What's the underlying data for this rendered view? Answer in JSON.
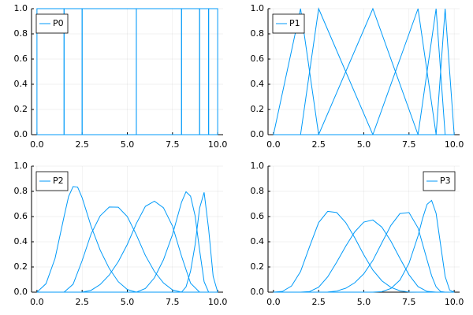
{
  "chart_data": [
    {
      "type": "line",
      "legend_label": "P0",
      "legend_position": "top-left",
      "color": "#009af9",
      "grid": true,
      "xlim": [
        -0.3,
        10.3
      ],
      "ylim": [
        0,
        1
      ],
      "xticks": [
        {
          "value": 0,
          "label": "0.0"
        },
        {
          "value": 2.5,
          "label": "2.5"
        },
        {
          "value": 5,
          "label": "5.0"
        },
        {
          "value": 7.5,
          "label": "7.5"
        },
        {
          "value": 10,
          "label": "10.0"
        }
      ],
      "yticks": [
        {
          "value": 0,
          "label": "0.0"
        },
        {
          "value": 0.2,
          "label": "0.2"
        },
        {
          "value": 0.4,
          "label": "0.4"
        },
        {
          "value": 0.6,
          "label": "0.6"
        },
        {
          "value": 0.8,
          "label": "0.8"
        },
        {
          "value": 1,
          "label": "1.0"
        }
      ],
      "series": [
        {
          "x": [
            0,
            0,
            0,
            1.5,
            1.5,
            10
          ],
          "values": [
            0,
            0,
            1,
            1,
            0,
            0
          ]
        },
        {
          "x": [
            0,
            1.5,
            1.5,
            2.5,
            2.5,
            10
          ],
          "values": [
            0,
            0,
            1,
            1,
            0,
            0
          ]
        },
        {
          "x": [
            0,
            2.5,
            2.5,
            5.5,
            5.5,
            10
          ],
          "values": [
            0,
            0,
            1,
            1,
            0,
            0
          ]
        },
        {
          "x": [
            0,
            5.5,
            5.5,
            8,
            8,
            10
          ],
          "values": [
            0,
            0,
            1,
            1,
            0,
            0
          ]
        },
        {
          "x": [
            0,
            8,
            8,
            9,
            9,
            10
          ],
          "values": [
            0,
            0,
            1,
            1,
            0,
            0
          ]
        },
        {
          "x": [
            0,
            9,
            9,
            9.5,
            9.5,
            10
          ],
          "values": [
            0,
            0,
            1,
            1,
            0,
            0
          ]
        },
        {
          "x": [
            0,
            9.5,
            9.5,
            10,
            10,
            10
          ],
          "values": [
            0,
            0,
            1,
            1,
            0,
            0
          ]
        }
      ]
    },
    {
      "type": "line",
      "legend_label": "P1",
      "legend_position": "top-left",
      "color": "#009af9",
      "grid": true,
      "xlim": [
        -0.3,
        10.3
      ],
      "ylim": [
        0,
        1
      ],
      "xticks": [
        {
          "value": 0,
          "label": "0.0"
        },
        {
          "value": 2.5,
          "label": "2.5"
        },
        {
          "value": 5,
          "label": "5.0"
        },
        {
          "value": 7.5,
          "label": "7.5"
        },
        {
          "value": 10,
          "label": "10.0"
        }
      ],
      "yticks": [
        {
          "value": 0,
          "label": "0.0"
        },
        {
          "value": 0.2,
          "label": "0.2"
        },
        {
          "value": 0.4,
          "label": "0.4"
        },
        {
          "value": 0.6,
          "label": "0.6"
        },
        {
          "value": 0.8,
          "label": "0.8"
        },
        {
          "value": 1,
          "label": "1.0"
        }
      ],
      "series": [
        {
          "x": [
            0,
            0,
            1.5,
            2.5,
            10
          ],
          "values": [
            0,
            0,
            1,
            0,
            0
          ]
        },
        {
          "x": [
            0,
            1.5,
            2.5,
            5.5,
            10
          ],
          "values": [
            0,
            0,
            1,
            0,
            0
          ]
        },
        {
          "x": [
            0,
            2.5,
            5.5,
            8,
            10
          ],
          "values": [
            0,
            0,
            1,
            0,
            0
          ]
        },
        {
          "x": [
            0,
            5.5,
            8,
            9,
            10
          ],
          "values": [
            0,
            0,
            1,
            0,
            0
          ]
        },
        {
          "x": [
            0,
            8,
            9,
            9.5,
            10
          ],
          "values": [
            0,
            0,
            1,
            0,
            0
          ]
        },
        {
          "x": [
            0,
            9,
            9.5,
            10,
            10
          ],
          "values": [
            0,
            0,
            1,
            0,
            0
          ]
        }
      ]
    },
    {
      "type": "line",
      "legend_label": "P2",
      "legend_position": "top-left",
      "color": "#009af9",
      "grid": true,
      "xlim": [
        -0.3,
        10.3
      ],
      "ylim": [
        0,
        1
      ],
      "xticks": [
        {
          "value": 0,
          "label": "0.0"
        },
        {
          "value": 2.5,
          "label": "2.5"
        },
        {
          "value": 5,
          "label": "5.0"
        },
        {
          "value": 7.5,
          "label": "7.5"
        },
        {
          "value": 10,
          "label": "10.0"
        }
      ],
      "yticks": [
        {
          "value": 0,
          "label": "0.0"
        },
        {
          "value": 0.2,
          "label": "0.2"
        },
        {
          "value": 0.4,
          "label": "0.4"
        },
        {
          "value": 0.6,
          "label": "0.6"
        },
        {
          "value": 0.8,
          "label": "0.8"
        },
        {
          "value": 1,
          "label": "1.0"
        }
      ],
      "series": [
        {
          "x": [
            0,
            0.5,
            1,
            1.5,
            1.75,
            2,
            2.25,
            2.5,
            3,
            3.5,
            4,
            4.5,
            5,
            5.5,
            10
          ],
          "values": [
            0,
            0.067,
            0.267,
            0.6,
            0.759,
            0.838,
            0.834,
            0.75,
            0.521,
            0.333,
            0.188,
            0.083,
            0.021,
            0,
            0
          ]
        },
        {
          "x": [
            0,
            1.5,
            2,
            2.5,
            3,
            3.5,
            4,
            4.5,
            5,
            5.5,
            6,
            6.5,
            7,
            7.5,
            8,
            10
          ],
          "values": [
            0,
            0,
            0.063,
            0.25,
            0.464,
            0.606,
            0.676,
            0.674,
            0.6,
            0.455,
            0.291,
            0.164,
            0.073,
            0.018,
            0,
            0
          ]
        },
        {
          "x": [
            0,
            2.5,
            3,
            3.5,
            4,
            4.5,
            5,
            5.5,
            6,
            6.5,
            7,
            7.5,
            8,
            8.5,
            9,
            10
          ],
          "values": [
            0,
            0,
            0.015,
            0.061,
            0.136,
            0.242,
            0.379,
            0.545,
            0.681,
            0.722,
            0.67,
            0.525,
            0.286,
            0.071,
            0,
            0
          ]
        },
        {
          "x": [
            0,
            5.5,
            6,
            6.5,
            7,
            7.5,
            8,
            8.25,
            8.5,
            8.75,
            9,
            9.25,
            9.5,
            10
          ],
          "values": [
            0,
            0,
            0.029,
            0.114,
            0.257,
            0.457,
            0.714,
            0.797,
            0.762,
            0.607,
            0.333,
            0.083,
            0,
            0
          ]
        },
        {
          "x": [
            0,
            8,
            8.25,
            8.5,
            8.75,
            9,
            9.25,
            9.5,
            9.75,
            10
          ],
          "values": [
            0,
            0,
            0.042,
            0.167,
            0.375,
            0.667,
            0.792,
            0.5,
            0.125,
            0
          ]
        }
      ]
    },
    {
      "type": "line",
      "legend_label": "P3",
      "legend_position": "top-right",
      "color": "#009af9",
      "grid": true,
      "xlim": [
        -0.3,
        10.3
      ],
      "ylim": [
        0,
        1
      ],
      "xticks": [
        {
          "value": 0,
          "label": "0.0"
        },
        {
          "value": 2.5,
          "label": "2.5"
        },
        {
          "value": 5,
          "label": "5.0"
        },
        {
          "value": 7.5,
          "label": "7.5"
        },
        {
          "value": 10,
          "label": "10.0"
        }
      ],
      "yticks": [
        {
          "value": 0,
          "label": "0.0"
        },
        {
          "value": 0.2,
          "label": "0.2"
        },
        {
          "value": 0.4,
          "label": "0.4"
        },
        {
          "value": 0.6,
          "label": "0.6"
        },
        {
          "value": 0.8,
          "label": "0.8"
        },
        {
          "value": 1,
          "label": "1.0"
        }
      ],
      "series": [
        {
          "x": [
            0,
            0.5,
            1,
            1.5,
            2,
            2.5,
            3,
            3.5,
            4,
            4.5,
            5,
            5.5,
            6,
            6.5,
            7,
            7.5,
            8,
            10
          ],
          "values": [
            0,
            0.006,
            0.049,
            0.164,
            0.362,
            0.552,
            0.641,
            0.632,
            0.552,
            0.431,
            0.296,
            0.175,
            0.09,
            0.038,
            0.011,
            0.001,
            0,
            0
          ]
        },
        {
          "x": [
            0,
            1.5,
            2,
            2.5,
            3,
            3.5,
            4,
            4.5,
            5,
            5.5,
            6,
            6.5,
            7,
            7.5,
            8,
            8.5,
            9,
            10
          ],
          "values": [
            0,
            0,
            0.005,
            0.039,
            0.121,
            0.238,
            0.365,
            0.479,
            0.556,
            0.573,
            0.516,
            0.404,
            0.268,
            0.138,
            0.044,
            0.006,
            0,
            0
          ]
        },
        {
          "x": [
            0,
            2.5,
            3,
            3.5,
            4,
            4.5,
            5,
            5.5,
            6,
            6.5,
            7,
            7.5,
            8,
            8.5,
            8.75,
            9,
            9.25,
            9.5,
            10
          ],
          "values": [
            0,
            0,
            0.001,
            0.009,
            0.031,
            0.075,
            0.146,
            0.252,
            0.392,
            0.53,
            0.624,
            0.632,
            0.51,
            0.256,
            0.131,
            0.042,
            0.005,
            0,
            0
          ]
        },
        {
          "x": [
            0,
            5.5,
            6,
            6.5,
            7,
            7.5,
            8,
            8.25,
            8.5,
            8.75,
            9,
            9.25,
            9.5,
            9.75,
            10
          ],
          "values": [
            0,
            0,
            0.004,
            0.029,
            0.096,
            0.229,
            0.446,
            0.584,
            0.697,
            0.728,
            0.625,
            0.375,
            0.125,
            0.016,
            0
          ]
        }
      ]
    }
  ]
}
